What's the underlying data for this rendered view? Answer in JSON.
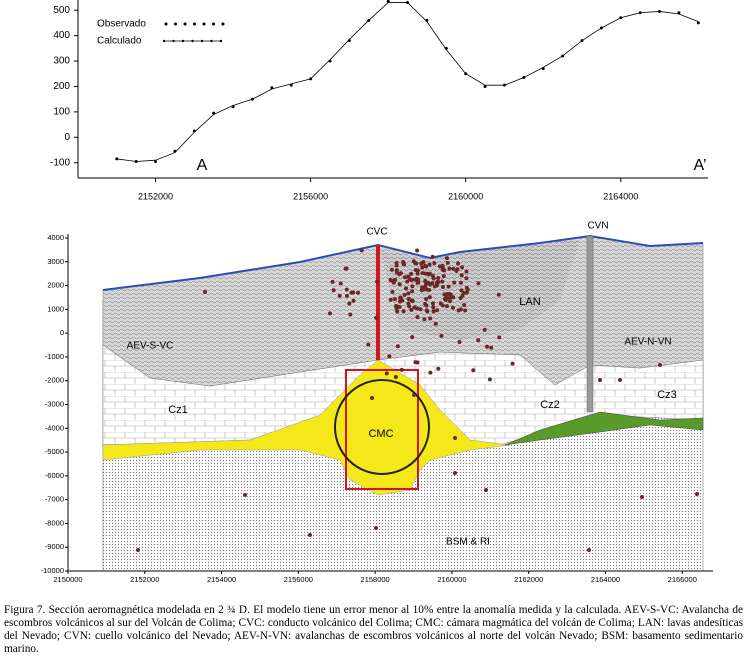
{
  "chart_data": [
    {
      "type": "line",
      "x": [
        2151000,
        2151500,
        2152000,
        2152500,
        2153000,
        2153500,
        2154000,
        2154500,
        2155000,
        2155500,
        2156000,
        2156500,
        2157000,
        2157500,
        2158000,
        2158500,
        2159000,
        2159500,
        2160000,
        2160500,
        2161000,
        2161500,
        2162000,
        2162500,
        2163000,
        2163500,
        2164000,
        2164500,
        2165000,
        2165500,
        2166000
      ],
      "series": [
        {
          "name": "Observado",
          "color": "#000000",
          "values": [
            -85,
            -95,
            -95,
            -55,
            25,
            95,
            120,
            150,
            195,
            205,
            230,
            300,
            380,
            460,
            535,
            530,
            460,
            350,
            250,
            200,
            205,
            235,
            270,
            320,
            380,
            430,
            470,
            490,
            495,
            490,
            450
          ]
        },
        {
          "name": "Calculado",
          "color": "#000000",
          "values": [
            -85,
            -95,
            -90,
            -60,
            20,
            90,
            125,
            150,
            190,
            210,
            230,
            305,
            385,
            460,
            530,
            530,
            455,
            345,
            250,
            205,
            205,
            235,
            275,
            320,
            380,
            430,
            470,
            490,
            495,
            485,
            455
          ]
        }
      ],
      "annotations": [
        "A",
        "A’"
      ],
      "xlim": [
        2150000,
        2166250
      ],
      "xticks": [
        2152000,
        2156000,
        2160000,
        2164000
      ],
      "ylim": [
        -160,
        540
      ],
      "yticks": [
        -100,
        0,
        100,
        200,
        300,
        400,
        500
      ]
    },
    {
      "type": "section",
      "labels": [
        "CVC",
        "CVN",
        "LAN",
        "AEV-S-VC",
        "AEV-N-VN",
        "Cz1",
        "Cz2",
        "Cz3",
        "CMC",
        "BSM & RI"
      ],
      "xlim": [
        2150000,
        2166800
      ],
      "xticks": [
        2150000,
        2152000,
        2154000,
        2156000,
        2158000,
        2160000,
        2162000,
        2164000,
        2166000
      ],
      "ylim": [
        -10000,
        4000
      ],
      "yticks": [
        4000,
        3000,
        2000,
        1000,
        0,
        -1000,
        -2000,
        -3000,
        -4000,
        -5000,
        -6000,
        -7000,
        -8000,
        -9000,
        -10000
      ]
    }
  ],
  "caption": "Figura 7. Sección aeromagnética modelada en 2 ¾ D. El modelo tiene un error menor al 10% entre la anomalía medida y la calculada. AEV-S-VC: Avalancha de escombros volcánicos al sur del Volcán de Colima; CVC: conducto volcánico del Colima; CMC: cámara magmática del volcán de Colima; LAN: lavas andesíticas del Nevado; CVN: cuello volcánico del Nevado; AEV-N-VN: avalanchas de escombros volcánicos al norte del volcán Nevado; BSM: basamento sedimentario marino."
}
